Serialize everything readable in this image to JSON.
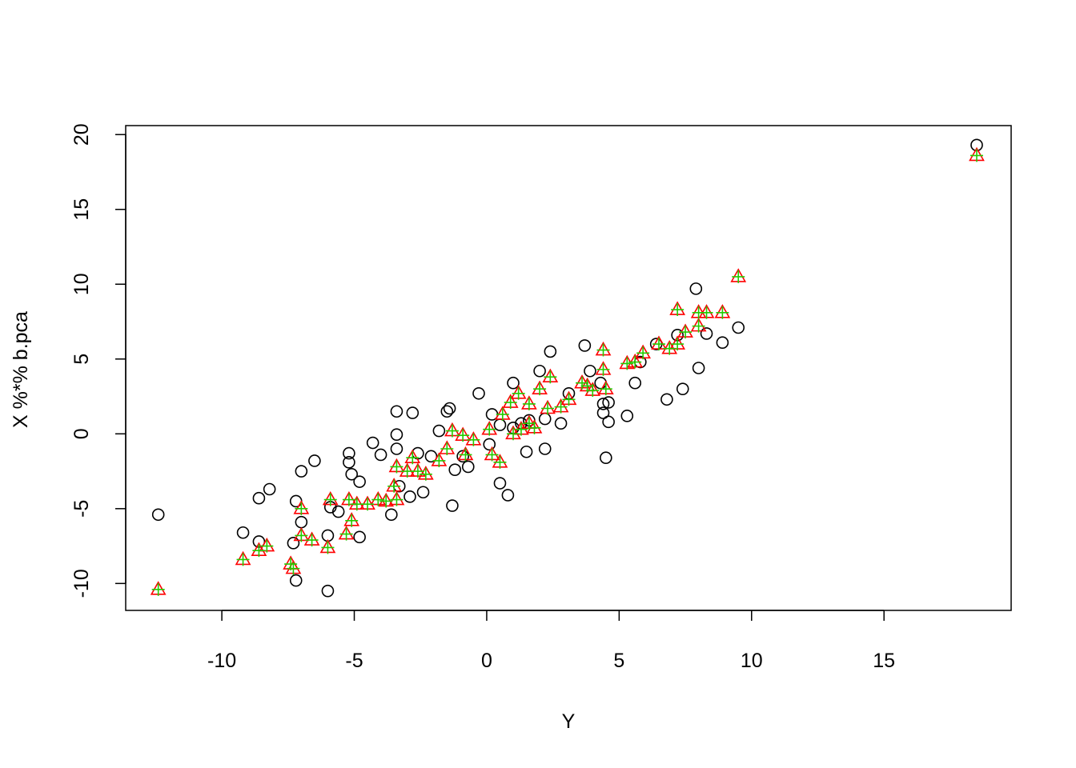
{
  "chart_data": {
    "type": "scatter",
    "x_label": "Y",
    "y_label": "X %*% b.pca",
    "xlim": [
      -13.63,
      19.8
    ],
    "ylim": [
      -11.8,
      20.6
    ],
    "xticks": [
      -10,
      -5,
      0,
      5,
      10,
      15
    ],
    "yticks": [
      -10,
      -5,
      0,
      5,
      10,
      15,
      20
    ],
    "grid": false,
    "series": [
      {
        "marker": "circle",
        "color": "#000000",
        "x": [
          -12.4,
          -9.2,
          -8.6,
          -8.6,
          -8.2,
          -7.3,
          -7.2,
          -7.2,
          -7.0,
          -7.0,
          -6.5,
          -6.0,
          -6.0,
          -5.9,
          -5.6,
          -5.2,
          -5.2,
          -5.1,
          -4.8,
          -4.8,
          -4.3,
          -4.0,
          -3.6,
          -3.4,
          -3.4,
          -3.4,
          -3.3,
          -2.9,
          -2.8,
          -2.6,
          -2.4,
          -2.1,
          -1.8,
          -1.5,
          -1.4,
          -1.3,
          -1.2,
          -0.9,
          -0.7,
          -0.3,
          0.1,
          0.2,
          0.5,
          0.5,
          0.8,
          1.0,
          1.0,
          1.3,
          1.5,
          1.6,
          2.0,
          2.2,
          2.2,
          2.4,
          2.8,
          3.1,
          3.7,
          3.9,
          4.3,
          4.4,
          4.4,
          4.5,
          4.6,
          4.6,
          5.3,
          5.6,
          5.8,
          6.4,
          6.8,
          7.2,
          7.4,
          7.9,
          8.0,
          8.3,
          8.9,
          9.5,
          18.5
        ],
        "values": [
          -5.4,
          -6.6,
          -4.3,
          -7.2,
          -3.7,
          -7.3,
          -4.5,
          -9.8,
          -5.9,
          -2.5,
          -1.8,
          -10.5,
          -6.8,
          -4.9,
          -5.2,
          -1.3,
          -1.9,
          -2.7,
          -3.2,
          -6.9,
          -0.6,
          -1.4,
          -5.4,
          1.5,
          -0.05,
          -1.0,
          -3.5,
          -4.2,
          1.4,
          -1.3,
          -3.9,
          -1.5,
          0.2,
          1.5,
          1.7,
          -4.8,
          -2.4,
          -1.5,
          -2.2,
          2.7,
          -0.7,
          1.3,
          -3.3,
          0.6,
          -4.1,
          3.4,
          0.4,
          0.7,
          -1.2,
          0.9,
          4.2,
          1.0,
          -1.0,
          5.5,
          0.7,
          2.7,
          5.9,
          4.2,
          3.4,
          1.4,
          2.0,
          -1.6,
          0.8,
          2.1,
          1.2,
          3.4,
          4.8,
          6.0,
          2.3,
          6.6,
          3.0,
          9.7,
          4.4,
          6.7,
          6.1,
          7.1,
          19.3
        ]
      },
      {
        "marker": "triangle",
        "color": "#ff0000",
        "x": [
          -12.4,
          -9.2,
          -8.6,
          -8.3,
          -7.4,
          -7.3,
          -7.0,
          -7.0,
          -6.6,
          -6.0,
          -5.9,
          -5.3,
          -5.2,
          -5.1,
          -4.9,
          -4.5,
          -4.1,
          -3.8,
          -3.5,
          -3.4,
          -3.4,
          -3.0,
          -2.8,
          -2.6,
          -2.3,
          -1.8,
          -1.5,
          -1.3,
          -0.9,
          -0.8,
          -0.5,
          0.1,
          0.2,
          0.5,
          0.6,
          0.9,
          1.0,
          1.2,
          1.3,
          1.6,
          1.6,
          1.8,
          2.0,
          2.3,
          2.4,
          2.8,
          3.1,
          3.6,
          3.8,
          4.0,
          4.4,
          4.4,
          4.5,
          5.3,
          5.6,
          5.9,
          6.5,
          6.9,
          7.2,
          7.2,
          7.5,
          8.0,
          8.0,
          8.3,
          8.9,
          9.5,
          18.5
        ],
        "values": [
          -10.4,
          -8.4,
          -7.8,
          -7.5,
          -8.7,
          -9.0,
          -5.0,
          -6.8,
          -7.1,
          -7.6,
          -4.4,
          -6.7,
          -4.4,
          -5.8,
          -4.7,
          -4.7,
          -4.4,
          -4.5,
          -3.5,
          -2.2,
          -4.4,
          -2.5,
          -1.6,
          -2.5,
          -2.7,
          -1.8,
          -1.0,
          0.2,
          -0.1,
          -1.4,
          -0.4,
          0.3,
          -1.4,
          -1.9,
          1.3,
          2.1,
          0.0,
          2.7,
          0.3,
          0.7,
          2.0,
          0.4,
          3.0,
          1.7,
          3.8,
          1.8,
          2.3,
          3.4,
          3.2,
          2.9,
          5.6,
          4.3,
          3.0,
          4.7,
          4.8,
          5.4,
          6.0,
          5.7,
          8.3,
          6.0,
          6.8,
          7.2,
          8.1,
          8.1,
          8.1,
          10.5,
          18.6
        ]
      },
      {
        "marker": "plus",
        "color": "#22cc00",
        "x": [
          -12.4,
          -9.2,
          -8.6,
          -8.3,
          -7.4,
          -7.3,
          -7.0,
          -7.0,
          -6.6,
          -6.0,
          -5.9,
          -5.3,
          -5.2,
          -5.1,
          -4.9,
          -4.5,
          -4.1,
          -3.8,
          -3.5,
          -3.4,
          -3.4,
          -3.0,
          -2.8,
          -2.6,
          -2.3,
          -1.8,
          -1.5,
          -1.3,
          -0.9,
          -0.8,
          -0.5,
          0.1,
          0.2,
          0.5,
          0.6,
          0.9,
          1.0,
          1.2,
          1.3,
          1.6,
          1.6,
          1.8,
          2.0,
          2.3,
          2.4,
          2.8,
          3.1,
          3.6,
          3.8,
          4.0,
          4.4,
          4.4,
          4.5,
          5.3,
          5.6,
          5.9,
          6.5,
          6.9,
          7.2,
          7.2,
          7.5,
          8.0,
          8.0,
          8.3,
          8.9,
          9.5,
          18.5
        ],
        "values": [
          -10.4,
          -8.4,
          -7.8,
          -7.5,
          -8.7,
          -9.0,
          -5.0,
          -6.8,
          -7.1,
          -7.6,
          -4.4,
          -6.7,
          -4.4,
          -5.8,
          -4.7,
          -4.7,
          -4.4,
          -4.5,
          -3.5,
          -2.2,
          -4.4,
          -2.5,
          -1.6,
          -2.5,
          -2.7,
          -1.8,
          -1.0,
          0.2,
          -0.1,
          -1.4,
          -0.4,
          0.3,
          -1.4,
          -1.9,
          1.3,
          2.1,
          0.0,
          2.7,
          0.3,
          0.7,
          2.0,
          0.4,
          3.0,
          1.7,
          3.8,
          1.8,
          2.3,
          3.4,
          3.2,
          2.9,
          5.6,
          4.3,
          3.0,
          4.7,
          4.8,
          5.4,
          6.0,
          5.7,
          8.3,
          6.0,
          6.8,
          7.2,
          8.1,
          8.1,
          8.1,
          10.5,
          18.6
        ]
      }
    ]
  }
}
